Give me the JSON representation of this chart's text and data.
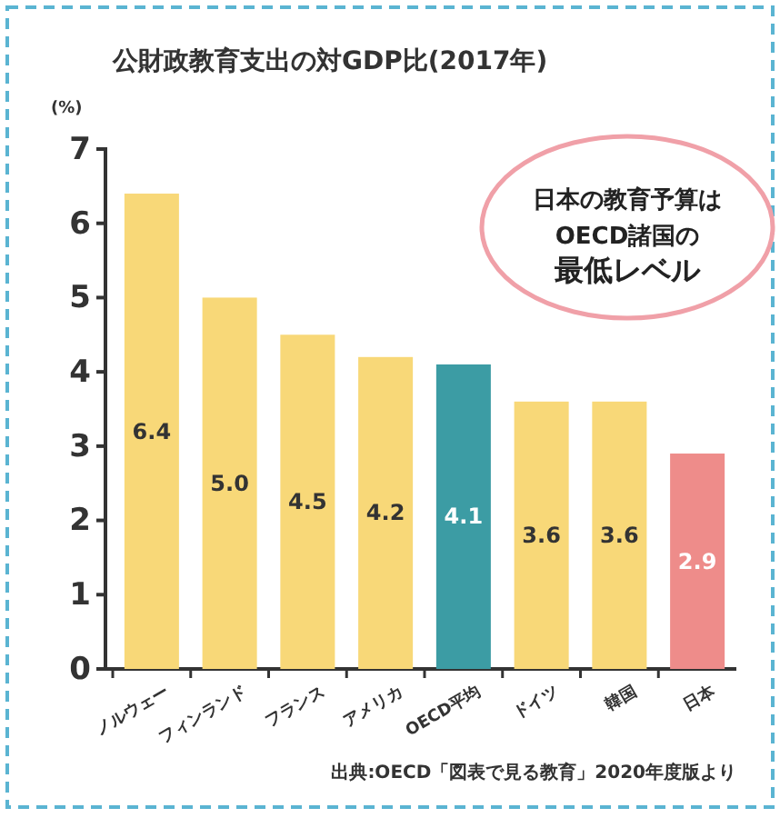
{
  "chart_data": {
    "type": "bar",
    "title": "公財政教育支出の対GDP比(2017年)",
    "ylabel": "(%)",
    "categories": [
      "ノルウェー",
      "フィンランド",
      "フランス",
      "アメリカ",
      "OECD平均",
      "ドイツ",
      "韓国",
      "日本"
    ],
    "values": [
      6.4,
      5.0,
      4.5,
      4.2,
      4.1,
      3.6,
      3.6,
      2.9
    ],
    "value_labels": [
      "6.4",
      "5.0",
      "4.5",
      "4.2",
      "4.1",
      "3.6",
      "3.6",
      "2.9"
    ],
    "colors": [
      "#f8d878",
      "#f8d878",
      "#f8d878",
      "#f8d878",
      "#3c9ca4",
      "#f8d878",
      "#f8d878",
      "#ee8c8a"
    ],
    "ylim": [
      0,
      7
    ],
    "yticks": [
      0,
      1,
      2,
      3,
      4,
      5,
      6,
      7
    ],
    "annotations": [
      "日本の教育予算は",
      "OECD諸国の",
      "最低レベル",
      "出典:OECD「図表で見る教育」2020年度版より"
    ]
  }
}
